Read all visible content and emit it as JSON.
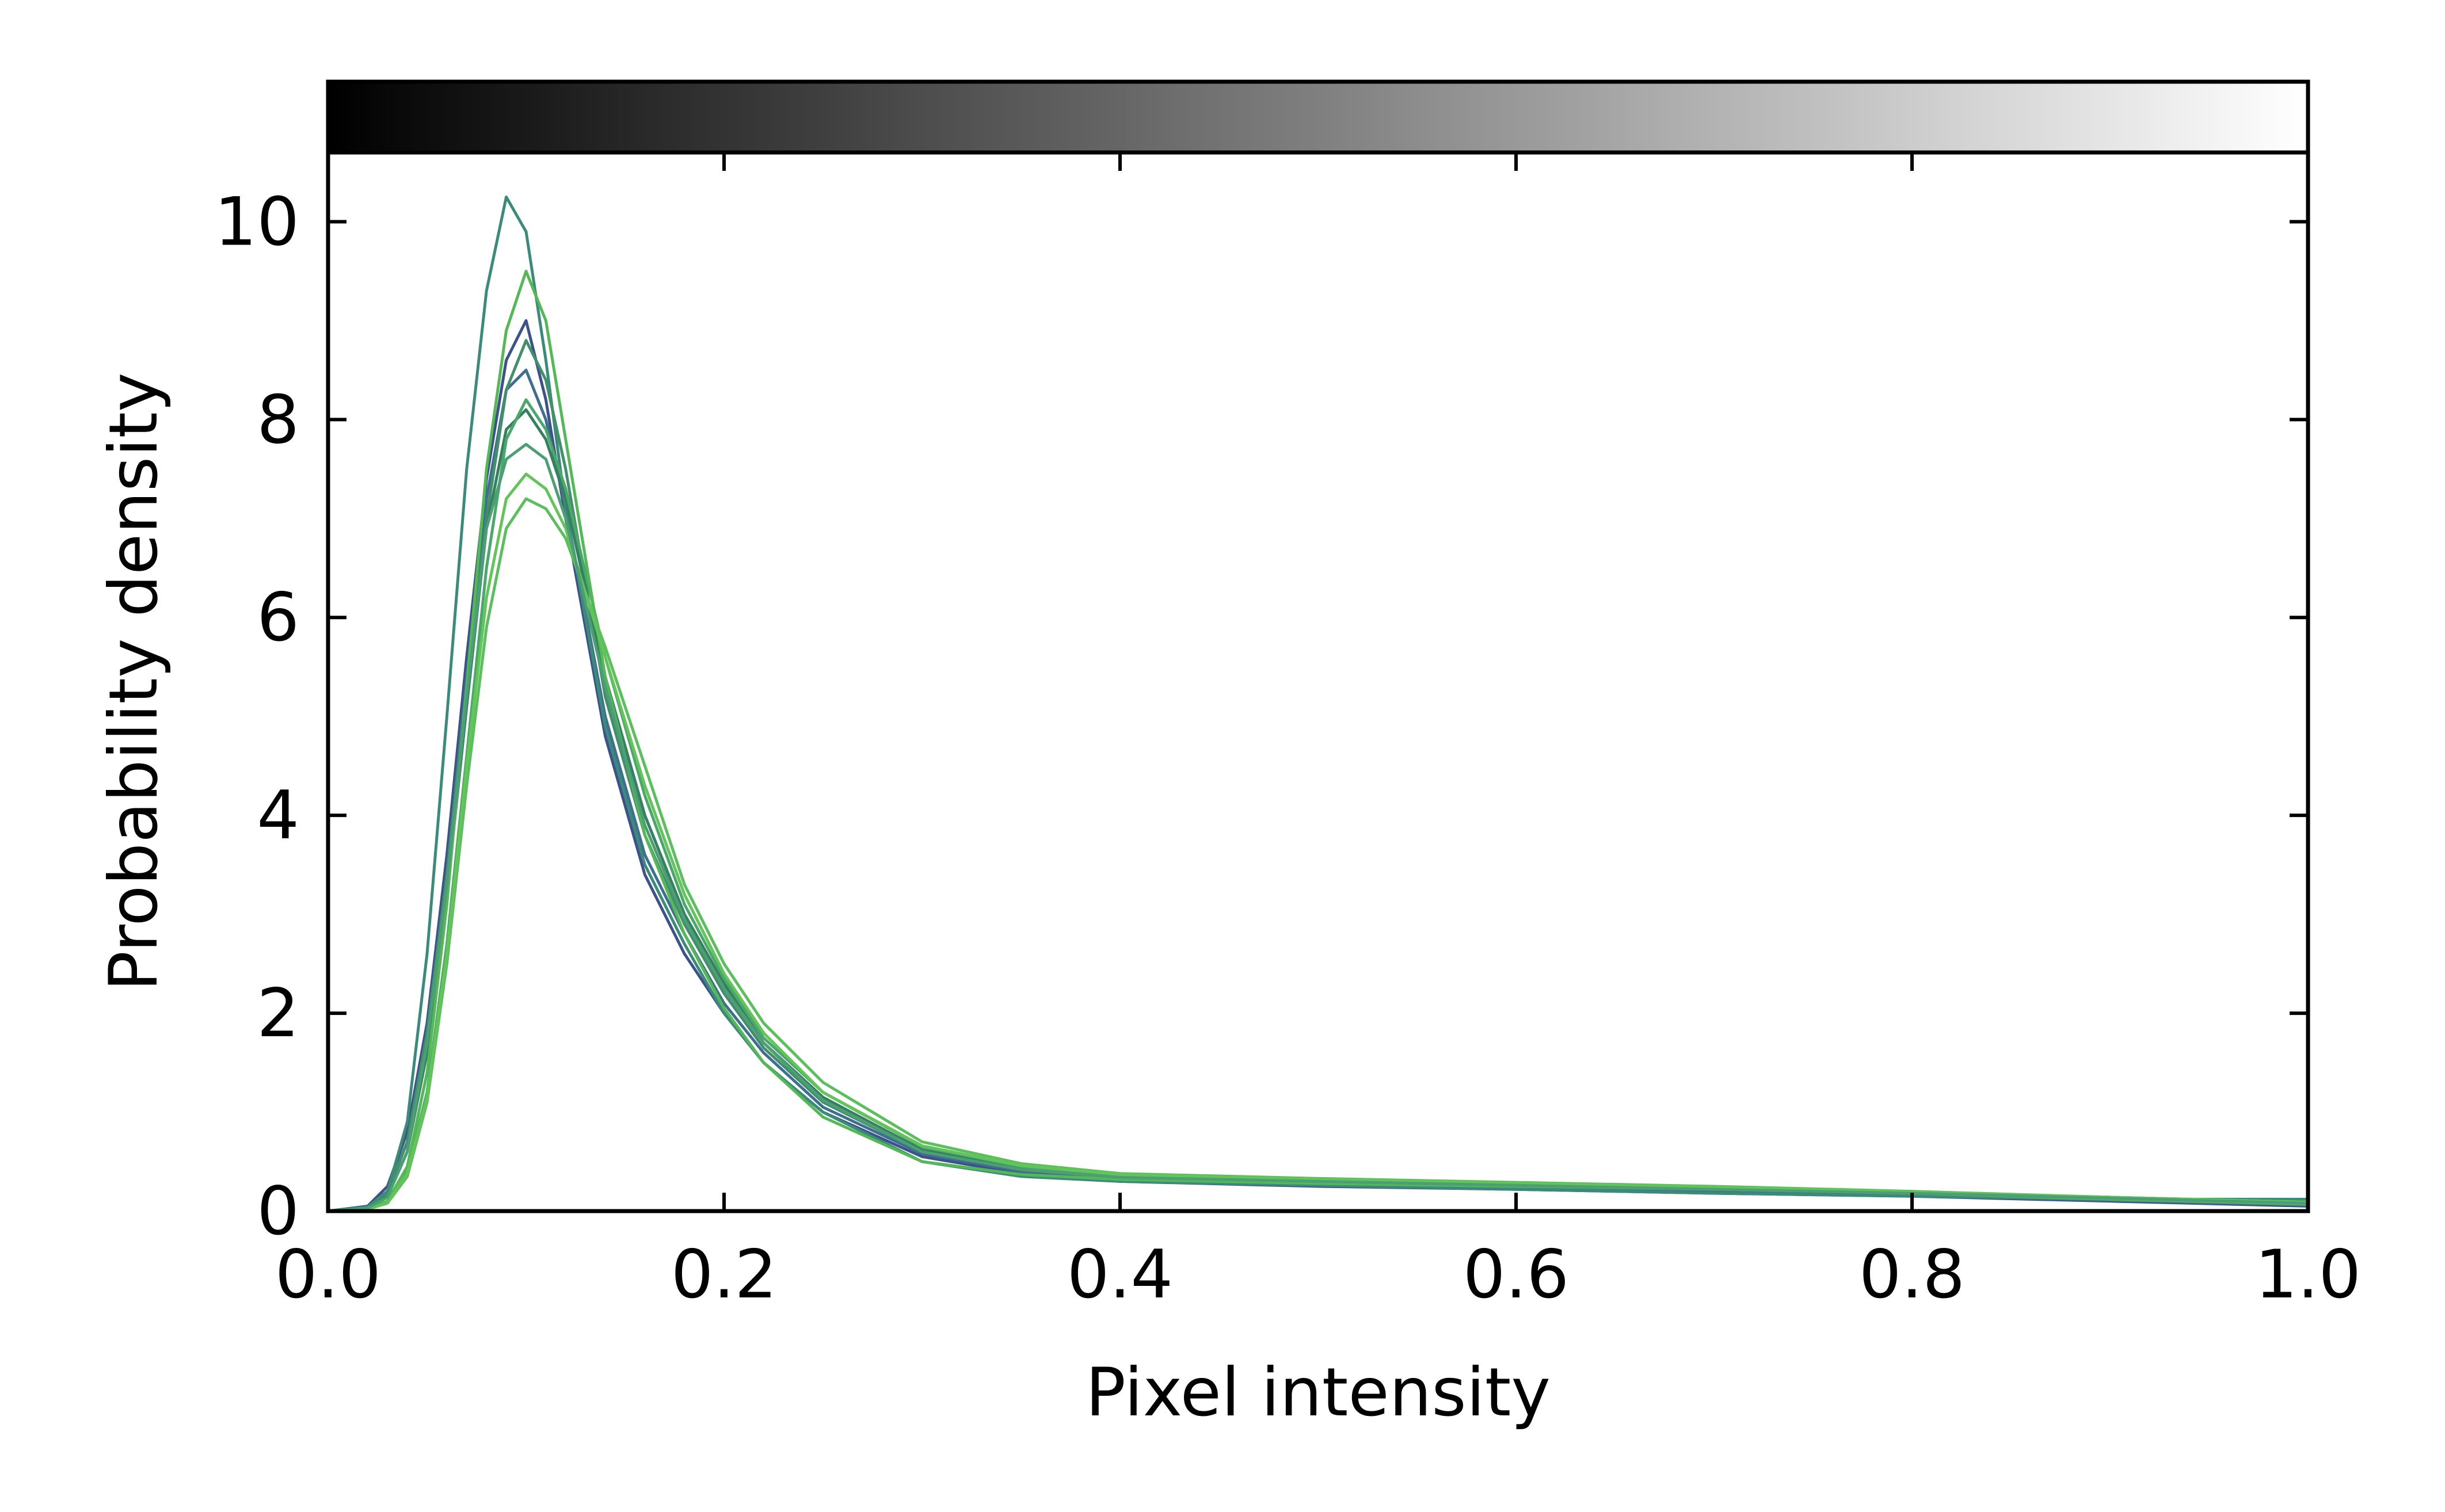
{
  "chart_data": {
    "type": "line",
    "title": "",
    "xlabel": "Pixel intensity",
    "ylabel": "Probability density",
    "xlim": [
      0.0,
      1.0
    ],
    "ylim": [
      0,
      10.7
    ],
    "x_ticks": [
      "0.0",
      "0.2",
      "0.4",
      "0.6",
      "0.8",
      "1.0"
    ],
    "y_ticks": [
      "0",
      "2",
      "4",
      "6",
      "8",
      "10"
    ],
    "grid": false,
    "legend": "none",
    "colorbar": {
      "type": "grayscale",
      "range": [
        0.0,
        1.0
      ],
      "position": "top"
    },
    "series": [
      {
        "color": "#3b528b",
        "points": [
          [
            0.0,
            0.0
          ],
          [
            0.02,
            0.05
          ],
          [
            0.03,
            0.25
          ],
          [
            0.04,
            0.8
          ],
          [
            0.05,
            1.9
          ],
          [
            0.06,
            3.6
          ],
          [
            0.07,
            5.6
          ],
          [
            0.08,
            7.4
          ],
          [
            0.09,
            8.6
          ],
          [
            0.1,
            9.0
          ],
          [
            0.11,
            8.2
          ],
          [
            0.12,
            7.0
          ],
          [
            0.14,
            4.8
          ],
          [
            0.16,
            3.4
          ],
          [
            0.18,
            2.6
          ],
          [
            0.2,
            2.0
          ],
          [
            0.22,
            1.5
          ],
          [
            0.25,
            1.0
          ],
          [
            0.3,
            0.55
          ],
          [
            0.35,
            0.38
          ],
          [
            0.4,
            0.3
          ],
          [
            0.5,
            0.25
          ],
          [
            0.6,
            0.22
          ],
          [
            0.7,
            0.18
          ],
          [
            0.8,
            0.15
          ],
          [
            0.9,
            0.1
          ],
          [
            1.0,
            0.05
          ]
        ]
      },
      {
        "color": "#3f6f8f",
        "points": [
          [
            0.0,
            0.0
          ],
          [
            0.02,
            0.04
          ],
          [
            0.03,
            0.2
          ],
          [
            0.04,
            0.7
          ],
          [
            0.05,
            1.8
          ],
          [
            0.06,
            3.4
          ],
          [
            0.07,
            5.4
          ],
          [
            0.08,
            7.2
          ],
          [
            0.09,
            8.3
          ],
          [
            0.1,
            8.5
          ],
          [
            0.11,
            8.0
          ],
          [
            0.12,
            7.1
          ],
          [
            0.14,
            5.0
          ],
          [
            0.16,
            3.6
          ],
          [
            0.18,
            2.8
          ],
          [
            0.2,
            2.1
          ],
          [
            0.22,
            1.6
          ],
          [
            0.25,
            1.05
          ],
          [
            0.3,
            0.58
          ],
          [
            0.35,
            0.4
          ],
          [
            0.4,
            0.32
          ],
          [
            0.5,
            0.28
          ],
          [
            0.6,
            0.24
          ],
          [
            0.7,
            0.2
          ],
          [
            0.8,
            0.16
          ],
          [
            0.9,
            0.11
          ],
          [
            1.0,
            0.06
          ]
        ]
      },
      {
        "color": "#3b8b7a",
        "points": [
          [
            0.0,
            0.0
          ],
          [
            0.02,
            0.04
          ],
          [
            0.03,
            0.2
          ],
          [
            0.04,
            0.9
          ],
          [
            0.05,
            2.6
          ],
          [
            0.06,
            5.0
          ],
          [
            0.07,
            7.5
          ],
          [
            0.08,
            9.3
          ],
          [
            0.09,
            10.25
          ],
          [
            0.1,
            9.9
          ],
          [
            0.11,
            8.6
          ],
          [
            0.12,
            7.1
          ],
          [
            0.14,
            4.9
          ],
          [
            0.16,
            3.5
          ],
          [
            0.18,
            2.7
          ],
          [
            0.2,
            2.0
          ],
          [
            0.22,
            1.5
          ],
          [
            0.25,
            1.0
          ],
          [
            0.3,
            0.5
          ],
          [
            0.35,
            0.35
          ],
          [
            0.4,
            0.3
          ],
          [
            0.5,
            0.26
          ],
          [
            0.6,
            0.22
          ],
          [
            0.7,
            0.18
          ],
          [
            0.8,
            0.15
          ],
          [
            0.9,
            0.12
          ],
          [
            1.0,
            0.12
          ]
        ]
      },
      {
        "color": "#428f6b",
        "points": [
          [
            0.0,
            0.0
          ],
          [
            0.02,
            0.03
          ],
          [
            0.03,
            0.18
          ],
          [
            0.04,
            0.7
          ],
          [
            0.05,
            1.8
          ],
          [
            0.06,
            3.4
          ],
          [
            0.07,
            5.3
          ],
          [
            0.08,
            7.0
          ],
          [
            0.09,
            8.3
          ],
          [
            0.1,
            8.8
          ],
          [
            0.11,
            8.4
          ],
          [
            0.12,
            7.5
          ],
          [
            0.14,
            5.2
          ],
          [
            0.16,
            3.8
          ],
          [
            0.18,
            2.9
          ],
          [
            0.2,
            2.2
          ],
          [
            0.22,
            1.65
          ],
          [
            0.25,
            1.1
          ],
          [
            0.3,
            0.6
          ],
          [
            0.35,
            0.42
          ],
          [
            0.4,
            0.34
          ],
          [
            0.5,
            0.3
          ],
          [
            0.6,
            0.26
          ],
          [
            0.7,
            0.22
          ],
          [
            0.8,
            0.18
          ],
          [
            0.9,
            0.13
          ],
          [
            1.0,
            0.08
          ]
        ]
      },
      {
        "color": "#35805e",
        "points": [
          [
            0.0,
            0.0
          ],
          [
            0.02,
            0.03
          ],
          [
            0.03,
            0.15
          ],
          [
            0.04,
            0.6
          ],
          [
            0.05,
            1.6
          ],
          [
            0.06,
            3.2
          ],
          [
            0.07,
            5.1
          ],
          [
            0.08,
            6.9
          ],
          [
            0.09,
            7.9
          ],
          [
            0.1,
            8.1
          ],
          [
            0.11,
            7.8
          ],
          [
            0.12,
            7.2
          ],
          [
            0.14,
            5.4
          ],
          [
            0.16,
            4.0
          ],
          [
            0.18,
            3.0
          ],
          [
            0.2,
            2.3
          ],
          [
            0.22,
            1.7
          ],
          [
            0.25,
            1.15
          ],
          [
            0.3,
            0.62
          ],
          [
            0.35,
            0.43
          ],
          [
            0.4,
            0.35
          ],
          [
            0.5,
            0.3
          ],
          [
            0.6,
            0.27
          ],
          [
            0.7,
            0.23
          ],
          [
            0.8,
            0.19
          ],
          [
            0.9,
            0.13
          ],
          [
            1.0,
            0.08
          ]
        ]
      },
      {
        "color": "#4aa86a",
        "points": [
          [
            0.0,
            0.0
          ],
          [
            0.02,
            0.02
          ],
          [
            0.03,
            0.1
          ],
          [
            0.04,
            0.4
          ],
          [
            0.05,
            1.2
          ],
          [
            0.06,
            2.7
          ],
          [
            0.07,
            4.6
          ],
          [
            0.08,
            6.5
          ],
          [
            0.09,
            7.8
          ],
          [
            0.1,
            8.2
          ],
          [
            0.11,
            7.9
          ],
          [
            0.12,
            7.3
          ],
          [
            0.14,
            5.6
          ],
          [
            0.16,
            4.2
          ],
          [
            0.18,
            3.1
          ],
          [
            0.2,
            2.35
          ],
          [
            0.22,
            1.75
          ],
          [
            0.25,
            1.2
          ],
          [
            0.3,
            0.65
          ],
          [
            0.35,
            0.45
          ],
          [
            0.4,
            0.36
          ],
          [
            0.5,
            0.31
          ],
          [
            0.6,
            0.27
          ],
          [
            0.7,
            0.23
          ],
          [
            0.8,
            0.19
          ],
          [
            0.9,
            0.14
          ],
          [
            1.0,
            0.09
          ]
        ]
      },
      {
        "color": "#54b857",
        "points": [
          [
            0.0,
            0.0
          ],
          [
            0.02,
            0.02
          ],
          [
            0.03,
            0.1
          ],
          [
            0.04,
            0.45
          ],
          [
            0.05,
            1.4
          ],
          [
            0.06,
            3.1
          ],
          [
            0.07,
            5.3
          ],
          [
            0.08,
            7.5
          ],
          [
            0.09,
            8.9
          ],
          [
            0.1,
            9.5
          ],
          [
            0.11,
            9.0
          ],
          [
            0.12,
            7.8
          ],
          [
            0.14,
            5.4
          ],
          [
            0.16,
            3.8
          ],
          [
            0.18,
            2.8
          ],
          [
            0.2,
            2.05
          ],
          [
            0.22,
            1.5
          ],
          [
            0.25,
            0.95
          ],
          [
            0.3,
            0.5
          ],
          [
            0.35,
            0.37
          ],
          [
            0.4,
            0.32
          ],
          [
            0.5,
            0.28
          ],
          [
            0.6,
            0.25
          ],
          [
            0.7,
            0.22
          ],
          [
            0.8,
            0.18
          ],
          [
            0.9,
            0.12
          ],
          [
            1.0,
            0.07
          ]
        ]
      },
      {
        "color": "#5cbf5e",
        "points": [
          [
            0.0,
            0.0
          ],
          [
            0.02,
            0.02
          ],
          [
            0.03,
            0.08
          ],
          [
            0.04,
            0.35
          ],
          [
            0.05,
            1.1
          ],
          [
            0.06,
            2.5
          ],
          [
            0.07,
            4.3
          ],
          [
            0.08,
            5.9
          ],
          [
            0.09,
            6.9
          ],
          [
            0.1,
            7.2
          ],
          [
            0.11,
            7.1
          ],
          [
            0.12,
            6.8
          ],
          [
            0.14,
            5.7
          ],
          [
            0.16,
            4.5
          ],
          [
            0.18,
            3.3
          ],
          [
            0.2,
            2.5
          ],
          [
            0.22,
            1.9
          ],
          [
            0.25,
            1.3
          ],
          [
            0.3,
            0.7
          ],
          [
            0.35,
            0.48
          ],
          [
            0.4,
            0.38
          ],
          [
            0.5,
            0.33
          ],
          [
            0.6,
            0.29
          ],
          [
            0.7,
            0.25
          ],
          [
            0.8,
            0.2
          ],
          [
            0.9,
            0.14
          ],
          [
            1.0,
            0.09
          ]
        ]
      },
      {
        "color": "#63c45a",
        "points": [
          [
            0.0,
            0.0
          ],
          [
            0.02,
            0.02
          ],
          [
            0.03,
            0.08
          ],
          [
            0.04,
            0.38
          ],
          [
            0.05,
            1.15
          ],
          [
            0.06,
            2.6
          ],
          [
            0.07,
            4.5
          ],
          [
            0.08,
            6.2
          ],
          [
            0.09,
            7.2
          ],
          [
            0.1,
            7.45
          ],
          [
            0.11,
            7.3
          ],
          [
            0.12,
            6.9
          ],
          [
            0.14,
            5.6
          ],
          [
            0.16,
            4.3
          ],
          [
            0.18,
            3.2
          ],
          [
            0.2,
            2.4
          ],
          [
            0.22,
            1.8
          ],
          [
            0.25,
            1.2
          ],
          [
            0.3,
            0.66
          ],
          [
            0.35,
            0.46
          ],
          [
            0.4,
            0.37
          ],
          [
            0.5,
            0.32
          ],
          [
            0.6,
            0.28
          ],
          [
            0.7,
            0.24
          ],
          [
            0.8,
            0.19
          ],
          [
            0.9,
            0.14
          ],
          [
            1.0,
            0.09
          ]
        ]
      },
      {
        "color": "#4c9f74",
        "points": [
          [
            0.0,
            0.0
          ],
          [
            0.02,
            0.03
          ],
          [
            0.03,
            0.14
          ],
          [
            0.04,
            0.6
          ],
          [
            0.05,
            1.7
          ],
          [
            0.06,
            3.3
          ],
          [
            0.07,
            5.2
          ],
          [
            0.08,
            6.9
          ],
          [
            0.09,
            7.6
          ],
          [
            0.1,
            7.75
          ],
          [
            0.11,
            7.6
          ],
          [
            0.12,
            7.0
          ],
          [
            0.14,
            5.3
          ],
          [
            0.16,
            3.9
          ],
          [
            0.18,
            2.95
          ],
          [
            0.2,
            2.25
          ],
          [
            0.22,
            1.7
          ],
          [
            0.25,
            1.12
          ],
          [
            0.3,
            0.6
          ],
          [
            0.35,
            0.42
          ],
          [
            0.4,
            0.34
          ],
          [
            0.5,
            0.3
          ],
          [
            0.6,
            0.26
          ],
          [
            0.7,
            0.22
          ],
          [
            0.8,
            0.18
          ],
          [
            0.9,
            0.13
          ],
          [
            1.0,
            0.08
          ]
        ]
      }
    ]
  }
}
